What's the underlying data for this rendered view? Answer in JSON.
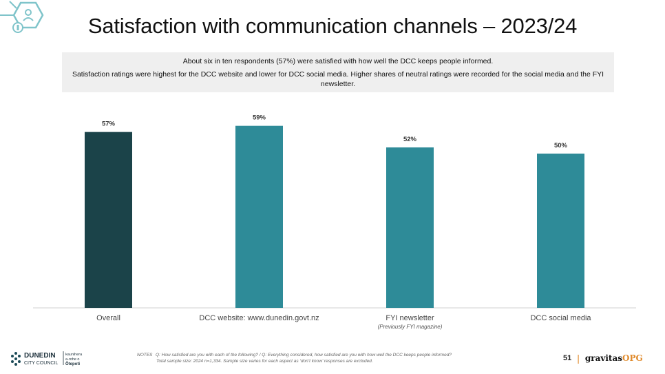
{
  "header": {
    "title": "Satisfaction with communication channels – 2023/24"
  },
  "summary": {
    "line1": "About six in ten respondents (57%) were satisfied with how well the DCC keeps people informed.",
    "line2": "Satisfaction ratings were highest for the DCC website and lower for DCC social media.  Higher shares of neutral ratings were recorded for the social media and the FYI newsletter."
  },
  "chart_data": {
    "type": "bar",
    "categories": [
      "Overall",
      "DCC website: www.dunedin.govt.nz",
      "FYI newsletter",
      "DCC social media"
    ],
    "category_sublabels": [
      "",
      "",
      "(Previously FYI magazine)",
      ""
    ],
    "values": [
      57,
      59,
      52,
      50
    ],
    "value_labels": [
      "57%",
      "59%",
      "52%",
      "50%"
    ],
    "ylim": [
      0,
      70
    ],
    "grid": false,
    "colors": [
      "#1b4349",
      "#2e8b98",
      "#2e8b98",
      "#2e8b98"
    ],
    "title": "",
    "xlabel": "",
    "ylabel": ""
  },
  "footer": {
    "logo_name": "DUNEDIN",
    "logo_sub": "CITY COUNCIL",
    "logo_maori_1": "kaunihera",
    "logo_maori_2": "a-rohe o",
    "logo_maori_3": "Ōtepoti",
    "notes_label": "NOTES",
    "notes_line1": "Q: How satisfied are you with each of the following?     /    Q: Everything considered, how satisfied are you with how well the DCC keeps people informed?",
    "notes_line2": "Total sample size: 2024 n=1,334. Sample size varies  for each aspect as ‘don’t know’ responses are excluded.",
    "page_number": "51",
    "separator": "|",
    "brand_main": "gravitas",
    "brand_accent": "OPG"
  }
}
